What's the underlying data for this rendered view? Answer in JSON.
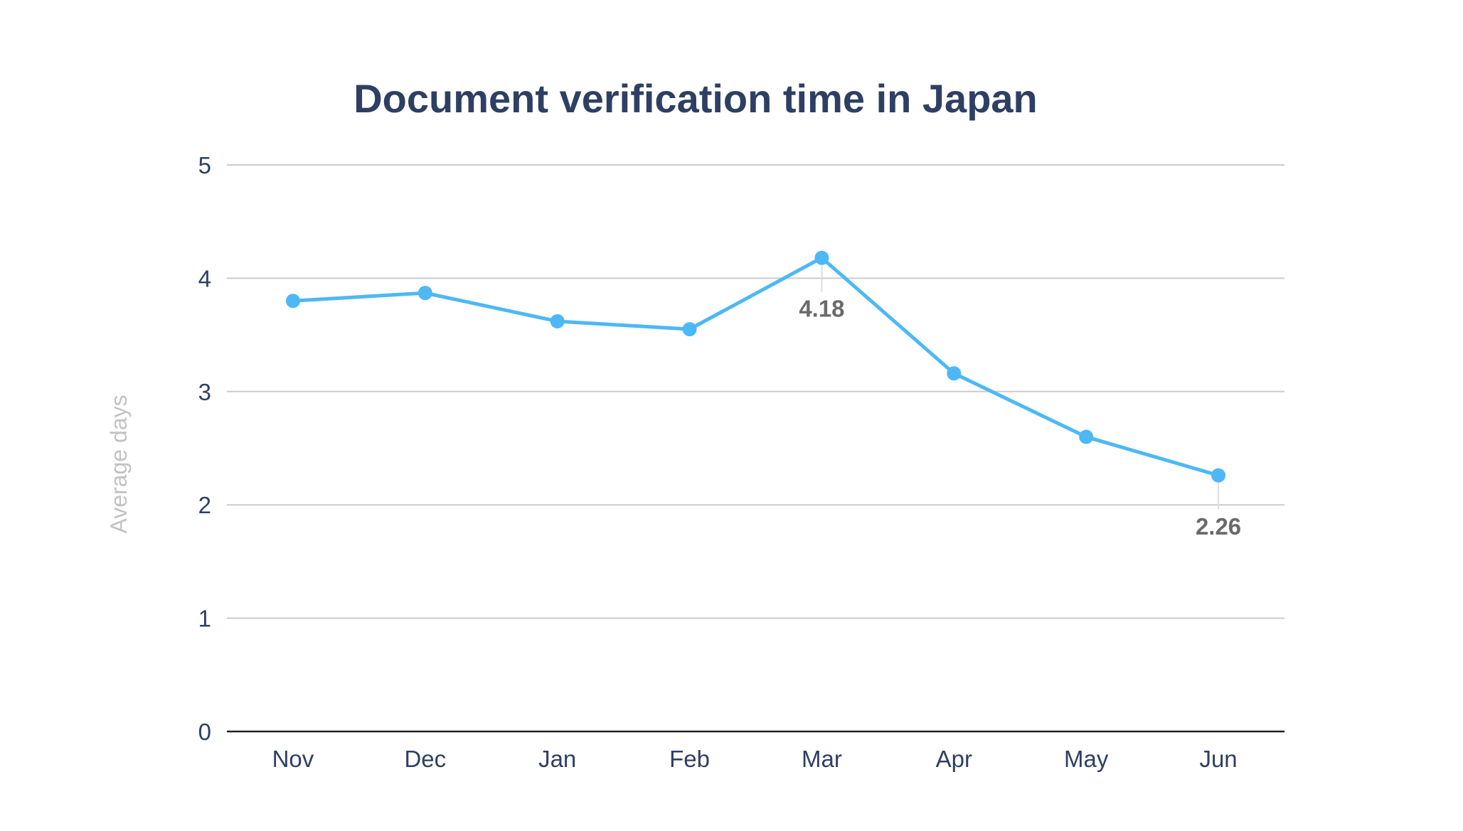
{
  "chart_data": {
    "type": "line",
    "title": "Document verification time in Japan",
    "xlabel": "",
    "ylabel": "Average days",
    "categories": [
      "Nov",
      "Dec",
      "Jan",
      "Feb",
      "Mar",
      "Apr",
      "May",
      "Jun"
    ],
    "series": [
      {
        "values": [
          3.8,
          3.87,
          3.62,
          3.55,
          4.18,
          3.16,
          2.6,
          2.26
        ]
      }
    ],
    "ylim": [
      0,
      5
    ],
    "yticks": [
      "0",
      "1",
      "2",
      "3",
      "4",
      "5"
    ],
    "grid": true,
    "legend": "none",
    "annotations": [
      {
        "index": 4,
        "label": "4.18"
      },
      {
        "index": 7,
        "label": "2.26"
      }
    ],
    "colors": {
      "line": "#4db8f5",
      "grid": "#cccccc",
      "axis": "#222222",
      "title": "#2e3f63",
      "ticks": "#2e3f63",
      "ylabel": "#c2c2c2",
      "annotation": "#6a6a6a",
      "leader": "#dddddd"
    }
  }
}
